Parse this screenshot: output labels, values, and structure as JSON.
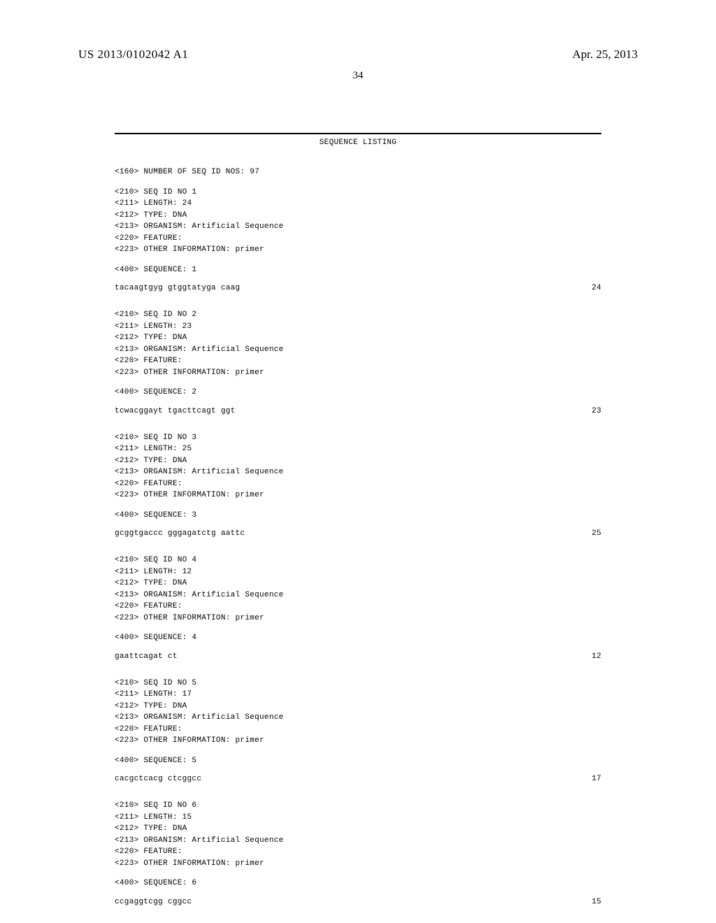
{
  "header": {
    "pub_number": "US 2013/0102042 A1",
    "pub_date": "Apr. 25, 2013",
    "page_num": "34"
  },
  "listing": {
    "title": "SEQUENCE LISTING",
    "num_header": "<160> NUMBER OF SEQ ID NOS: 97",
    "sequences": [
      {
        "meta": [
          "<210> SEQ ID NO 1",
          "<211> LENGTH: 24",
          "<212> TYPE: DNA",
          "<213> ORGANISM: Artificial Sequence",
          "<220> FEATURE:",
          "<223> OTHER INFORMATION: primer"
        ],
        "seq_label": "<400> SEQUENCE: 1",
        "sequence": "tacaagtgyg gtggtatyga caag",
        "length": "24"
      },
      {
        "meta": [
          "<210> SEQ ID NO 2",
          "<211> LENGTH: 23",
          "<212> TYPE: DNA",
          "<213> ORGANISM: Artificial Sequence",
          "<220> FEATURE:",
          "<223> OTHER INFORMATION: primer"
        ],
        "seq_label": "<400> SEQUENCE: 2",
        "sequence": "tcwacggayt tgacttcagt ggt",
        "length": "23"
      },
      {
        "meta": [
          "<210> SEQ ID NO 3",
          "<211> LENGTH: 25",
          "<212> TYPE: DNA",
          "<213> ORGANISM: Artificial Sequence",
          "<220> FEATURE:",
          "<223> OTHER INFORMATION: primer"
        ],
        "seq_label": "<400> SEQUENCE: 3",
        "sequence": "gcggtgaccc gggagatctg aattc",
        "length": "25"
      },
      {
        "meta": [
          "<210> SEQ ID NO 4",
          "<211> LENGTH: 12",
          "<212> TYPE: DNA",
          "<213> ORGANISM: Artificial Sequence",
          "<220> FEATURE:",
          "<223> OTHER INFORMATION: primer"
        ],
        "seq_label": "<400> SEQUENCE: 4",
        "sequence": "gaattcagat ct",
        "length": "12"
      },
      {
        "meta": [
          "<210> SEQ ID NO 5",
          "<211> LENGTH: 17",
          "<212> TYPE: DNA",
          "<213> ORGANISM: Artificial Sequence",
          "<220> FEATURE:",
          "<223> OTHER INFORMATION: primer"
        ],
        "seq_label": "<400> SEQUENCE: 5",
        "sequence": "cacgctcacg ctcggcc",
        "length": "17"
      },
      {
        "meta": [
          "<210> SEQ ID NO 6",
          "<211> LENGTH: 15",
          "<212> TYPE: DNA",
          "<213> ORGANISM: Artificial Sequence",
          "<220> FEATURE:",
          "<223> OTHER INFORMATION: primer"
        ],
        "seq_label": "<400> SEQUENCE: 6",
        "sequence": "ccgaggtcgg cggcc",
        "length": "15"
      }
    ]
  }
}
